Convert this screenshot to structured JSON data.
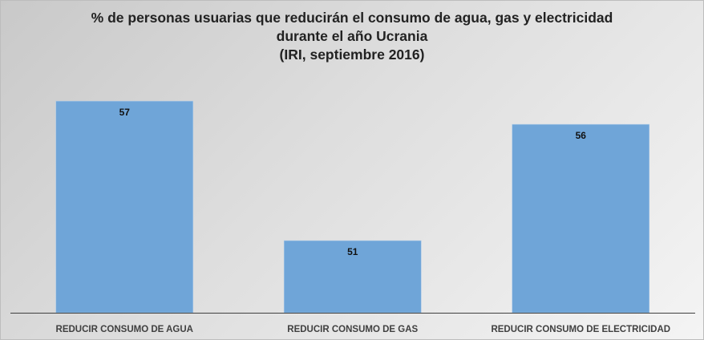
{
  "chart_data": {
    "type": "bar",
    "title_lines": [
      "% de personas usuarias que reducirán el consumo de agua, gas y electricidad",
      "durante el año Ucrania",
      "(IRI, septiembre 2016)"
    ],
    "categories": [
      "REDUCIR CONSUMO DE AGUA",
      "REDUCIR CONSUMO DE GAS",
      "REDUCIR CONSUMO DE ELECTRICIDAD"
    ],
    "values": [
      57,
      51,
      56
    ],
    "data_labels": [
      "57",
      "51",
      "56"
    ],
    "xlabel": "",
    "ylabel": "",
    "grid": false,
    "legend": "none",
    "bar_color": "#6fa5d8"
  }
}
